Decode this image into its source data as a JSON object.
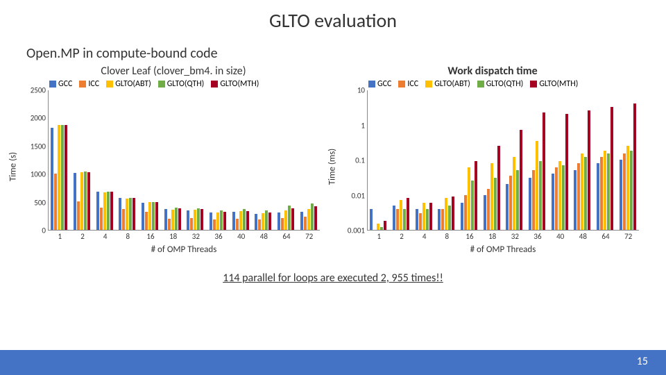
{
  "title": "GLTO evaluation",
  "subtitle": "Open.MP in compute-bound code",
  "caption": "114 parallel for loops are executed 2, 955 times!!",
  "page_number": "15",
  "series": [
    {
      "label": "GCC",
      "color": "#4472c4"
    },
    {
      "label": "ICC",
      "color": "#ed7d31"
    },
    {
      "label": "GLTO(ABT)",
      "color": "#ffc000"
    },
    {
      "label": "GLTO(QTH)",
      "color": "#70ad47"
    },
    {
      "label": "GLTO(MTH)",
      "color": "#a50021"
    }
  ],
  "x_categories": [
    "1",
    "2",
    "4",
    "8",
    "16",
    "18",
    "32",
    "36",
    "40",
    "48",
    "64",
    "72"
  ],
  "x_axis_label": "# of OMP Threads",
  "left": {
    "title": "Clover Leaf (clover_bm4. in size)",
    "title_bold": false,
    "y_label": "Time (s)",
    "scale": "linear",
    "ylim": [
      0,
      2500
    ],
    "yticks": [
      0,
      500,
      1000,
      1500,
      2000,
      2500
    ],
    "data": [
      [
        1820,
        1000,
        1870,
        1870,
        1870
      ],
      [
        1020,
        510,
        1030,
        1040,
        1030
      ],
      [
        680,
        400,
        670,
        680,
        680
      ],
      [
        570,
        370,
        560,
        570,
        570
      ],
      [
        480,
        320,
        490,
        500,
        490
      ],
      [
        370,
        200,
        360,
        400,
        380
      ],
      [
        350,
        210,
        360,
        390,
        370
      ],
      [
        310,
        180,
        310,
        350,
        320
      ],
      [
        320,
        200,
        330,
        370,
        340
      ],
      [
        280,
        180,
        300,
        350,
        310
      ],
      [
        310,
        210,
        350,
        430,
        390
      ],
      [
        320,
        230,
        370,
        470,
        420
      ]
    ]
  },
  "right": {
    "title": "Work dispatch time",
    "title_bold": true,
    "y_label": "Time (ms)",
    "scale": "log",
    "ylim": [
      0.001,
      10
    ],
    "yticks": [
      0.001,
      0.01,
      0.1,
      1,
      10
    ],
    "data": [
      [
        0.004,
        0.001,
        0.0015,
        0.0012,
        0.0018
      ],
      [
        0.005,
        0.004,
        0.007,
        0.004,
        0.008
      ],
      [
        0.004,
        0.003,
        0.006,
        0.004,
        0.006
      ],
      [
        0.004,
        0.004,
        0.008,
        0.005,
        0.009
      ],
      [
        0.006,
        0.01,
        0.06,
        0.025,
        0.09
      ],
      [
        0.01,
        0.015,
        0.08,
        0.03,
        0.25
      ],
      [
        0.02,
        0.035,
        0.12,
        0.05,
        0.7
      ],
      [
        0.03,
        0.05,
        0.35,
        0.09,
        2.2
      ],
      [
        0.04,
        0.06,
        0.09,
        0.07,
        2.0
      ],
      [
        0.05,
        0.08,
        0.15,
        0.12,
        2.5
      ],
      [
        0.08,
        0.12,
        0.18,
        0.15,
        3.2
      ],
      [
        0.1,
        0.15,
        0.25,
        0.18,
        4.0
      ]
    ]
  },
  "footer_color": "#4472c4"
}
